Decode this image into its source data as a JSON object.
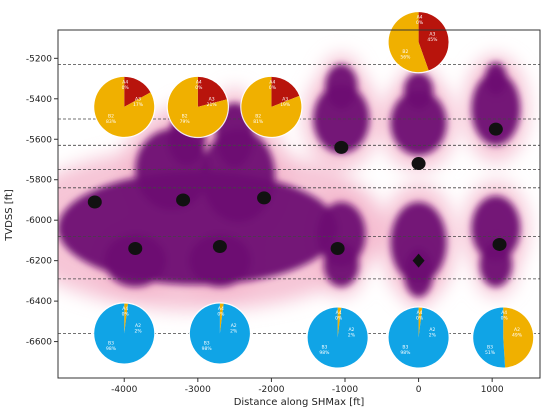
{
  "chart_data": {
    "type": "scatter",
    "xlabel": "Distance along SHMax [ft]",
    "ylabel": "TVDSS [ft]",
    "xlim": [
      -4900,
      1650
    ],
    "ylim": [
      -6780,
      -5060
    ],
    "xticks": [
      -4000,
      -3000,
      -2000,
      -1000,
      0,
      1000
    ],
    "xtick_labels": [
      "-4000",
      "-3000",
      "-2000",
      "-1000",
      "0",
      "1000"
    ],
    "yticks": [
      -5200,
      -5400,
      -5600,
      -5800,
      -6000,
      -6200,
      -6400,
      -6600
    ],
    "ytick_labels": [
      "-5200",
      "-5400",
      "-5600",
      "-5800",
      "-6000",
      "-6200",
      "-6400",
      "-6600"
    ],
    "horizontal_dashed_lines": [
      -5230,
      -5500,
      -5630,
      -5750,
      -5840,
      -6080,
      -6290,
      -6560
    ],
    "colors": {
      "cloud": "#6e1273",
      "cloud_halo": "#f4b6cc",
      "marker": "#111111",
      "A3": "#b8140c",
      "B2": "#f0b000",
      "B3": "#10a4e6",
      "A2": "#f0b000",
      "grid_line": "#444444"
    },
    "markers": [
      {
        "x": -4400,
        "y": -5910,
        "shape": "circle"
      },
      {
        "x": -3850,
        "y": -6140,
        "shape": "circle"
      },
      {
        "x": -3200,
        "y": -5900,
        "shape": "circle"
      },
      {
        "x": -2700,
        "y": -6130,
        "shape": "circle"
      },
      {
        "x": -2100,
        "y": -5890,
        "shape": "circle"
      },
      {
        "x": -1050,
        "y": -5640,
        "shape": "circle"
      },
      {
        "x": -1100,
        "y": -6140,
        "shape": "circle"
      },
      {
        "x": 0,
        "y": -5720,
        "shape": "circle"
      },
      {
        "x": 0,
        "y": -6200,
        "shape": "diamond"
      },
      {
        "x": 1050,
        "y": -5550,
        "shape": "circle"
      },
      {
        "x": 1100,
        "y": -6120,
        "shape": "circle"
      }
    ],
    "pies_upper": [
      {
        "x": -4000,
        "y": -5440,
        "slices": [
          {
            "label": "A4",
            "pct": "0%",
            "value": 0,
            "color_key": "A3"
          },
          {
            "label": "A3",
            "pct": "17%",
            "value": 17,
            "color_key": "A3"
          },
          {
            "label": "B2",
            "pct": "83%",
            "value": 83,
            "color_key": "B2"
          }
        ]
      },
      {
        "x": -3000,
        "y": -5440,
        "slices": [
          {
            "label": "A4",
            "pct": "0%",
            "value": 0,
            "color_key": "A3"
          },
          {
            "label": "A3",
            "pct": "21%",
            "value": 21,
            "color_key": "A3"
          },
          {
            "label": "B2",
            "pct": "79%",
            "value": 79,
            "color_key": "B2"
          }
        ]
      },
      {
        "x": -2000,
        "y": -5440,
        "slices": [
          {
            "label": "A4",
            "pct": "0%",
            "value": 0,
            "color_key": "A3"
          },
          {
            "label": "A3",
            "pct": "19%",
            "value": 19,
            "color_key": "A3"
          },
          {
            "label": "B2",
            "pct": "81%",
            "value": 81,
            "color_key": "B2"
          }
        ]
      },
      {
        "x": 0,
        "y": -5120,
        "slices": [
          {
            "label": "A4",
            "pct": "0%",
            "value": 0,
            "color_key": "A3"
          },
          {
            "label": "A3",
            "pct": "45%",
            "value": 45,
            "color_key": "A3"
          },
          {
            "label": "B2",
            "pct": "56%",
            "value": 56,
            "color_key": "B2"
          }
        ]
      }
    ],
    "pies_lower": [
      {
        "x": -4000,
        "y": -6560,
        "slices": [
          {
            "label": "A4",
            "pct": "0%",
            "value": 0,
            "color_key": "A2"
          },
          {
            "label": "A2",
            "pct": "2%",
            "value": 2,
            "color_key": "A2"
          },
          {
            "label": "B3",
            "pct": "98%",
            "value": 98,
            "color_key": "B3"
          }
        ]
      },
      {
        "x": -2700,
        "y": -6560,
        "slices": [
          {
            "label": "A4",
            "pct": "0%",
            "value": 0,
            "color_key": "A2"
          },
          {
            "label": "A2",
            "pct": "2%",
            "value": 2,
            "color_key": "A2"
          },
          {
            "label": "B3",
            "pct": "98%",
            "value": 98,
            "color_key": "B3"
          }
        ]
      },
      {
        "x": -1100,
        "y": -6580,
        "slices": [
          {
            "label": "A4",
            "pct": "0%",
            "value": 0,
            "color_key": "A2"
          },
          {
            "label": "A2",
            "pct": "2%",
            "value": 2,
            "color_key": "A2"
          },
          {
            "label": "B3",
            "pct": "98%",
            "value": 98,
            "color_key": "B3"
          }
        ]
      },
      {
        "x": 0,
        "y": -6580,
        "slices": [
          {
            "label": "A4",
            "pct": "0%",
            "value": 0,
            "color_key": "A2"
          },
          {
            "label": "A2",
            "pct": "2%",
            "value": 2,
            "color_key": "A2"
          },
          {
            "label": "B3",
            "pct": "98%",
            "value": 98,
            "color_key": "B3"
          }
        ]
      },
      {
        "x": 1150,
        "y": -6580,
        "slices": [
          {
            "label": "A4",
            "pct": "0%",
            "value": 0,
            "color_key": "A2"
          },
          {
            "label": "A2",
            "pct": "49%",
            "value": 49,
            "color_key": "A2"
          },
          {
            "label": "B3",
            "pct": "51%",
            "value": 51,
            "color_key": "B3"
          }
        ]
      }
    ],
    "clouds": [
      {
        "x": -3000,
        "y": -6040,
        "rx": 1900,
        "ry": 280
      },
      {
        "x": -3350,
        "y": -5750,
        "rx": 500,
        "ry": 200
      },
      {
        "x": -2450,
        "y": -5780,
        "rx": 500,
        "ry": 230
      },
      {
        "x": -3850,
        "y": -6200,
        "rx": 420,
        "ry": 130
      },
      {
        "x": -2700,
        "y": -6200,
        "rx": 420,
        "ry": 130
      },
      {
        "x": -2500,
        "y": -5580,
        "rx": 260,
        "ry": 160
      },
      {
        "x": -3150,
        "y": -5600,
        "rx": 260,
        "ry": 130
      },
      {
        "x": -1050,
        "y": -5500,
        "rx": 380,
        "ry": 170
      },
      {
        "x": -1050,
        "y": -5340,
        "rx": 220,
        "ry": 110
      },
      {
        "x": -1050,
        "y": -6070,
        "rx": 330,
        "ry": 160
      },
      {
        "x": -1050,
        "y": -6220,
        "rx": 240,
        "ry": 110
      },
      {
        "x": 0,
        "y": -5520,
        "rx": 380,
        "ry": 160
      },
      {
        "x": 0,
        "y": -5360,
        "rx": 200,
        "ry": 90
      },
      {
        "x": 0,
        "y": -6110,
        "rx": 380,
        "ry": 200
      },
      {
        "x": 0,
        "y": -6260,
        "rx": 200,
        "ry": 120
      },
      {
        "x": 1050,
        "y": -5450,
        "rx": 330,
        "ry": 180
      },
      {
        "x": 1050,
        "y": -5300,
        "rx": 150,
        "ry": 80
      },
      {
        "x": 1050,
        "y": -6040,
        "rx": 330,
        "ry": 160
      },
      {
        "x": 1050,
        "y": -6220,
        "rx": 220,
        "ry": 110
      }
    ]
  }
}
